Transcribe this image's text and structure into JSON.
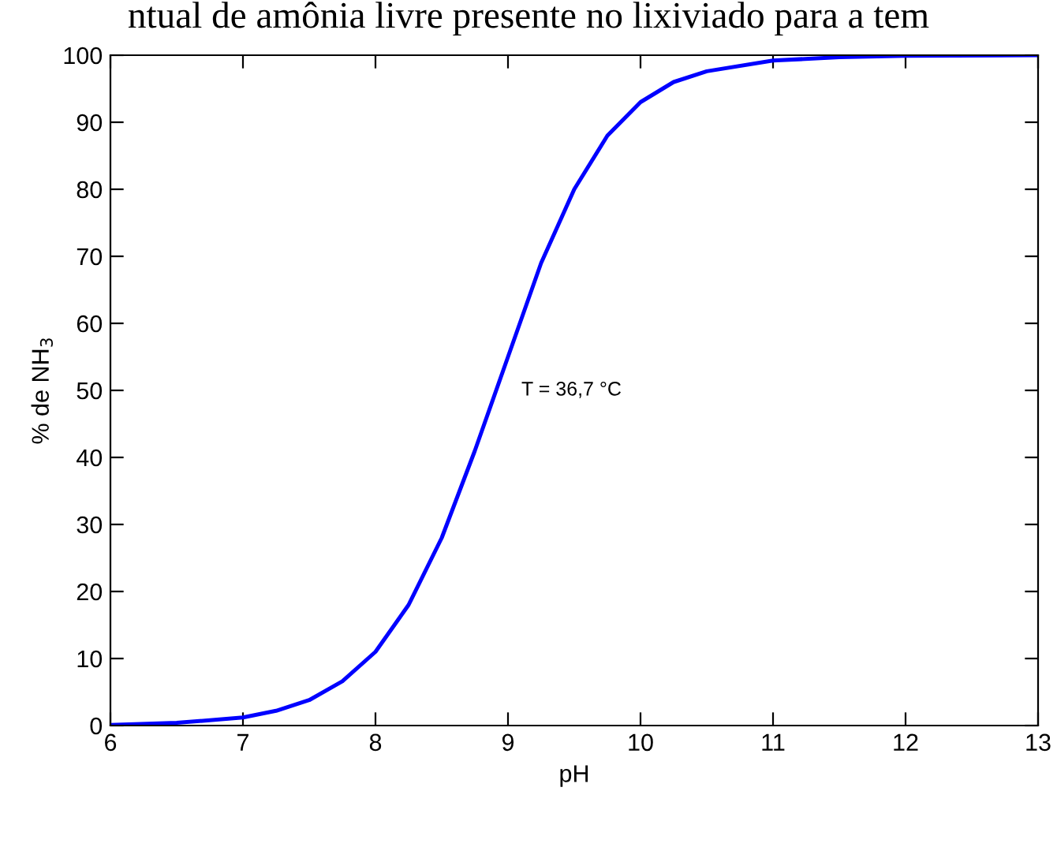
{
  "chart_data": {
    "type": "line",
    "title": "ntual de amônia livre presente no lixiviado para a tem",
    "xlabel": "pH",
    "ylabel": "% de NH$_{3}$",
    "x": [
      6,
      6.5,
      7,
      7.25,
      7.5,
      7.75,
      8,
      8.25,
      8.5,
      8.75,
      9,
      9.25,
      9.5,
      9.75,
      10,
      10.25,
      10.5,
      11,
      11.5,
      12,
      13
    ],
    "series": [
      {
        "color": "#0000ff",
        "values": [
          0.1,
          0.4,
          1.2,
          2.2,
          3.8,
          6.6,
          11,
          18,
          28,
          41,
          55,
          69,
          80,
          88,
          93,
          96,
          97.6,
          99.2,
          99.7,
          99.9,
          100
        ]
      }
    ],
    "annotations": [
      "T = 36,7 °C"
    ],
    "xlim": [
      6,
      13
    ],
    "ylim": [
      0,
      100
    ],
    "xticks": [
      6,
      7,
      8,
      9,
      10,
      11,
      12,
      13
    ],
    "yticks": [
      0,
      10,
      20,
      30,
      40,
      50,
      60,
      70,
      80,
      90,
      100
    ],
    "grid": false,
    "legend": false,
    "marker": "none",
    "line_style": "solid"
  }
}
